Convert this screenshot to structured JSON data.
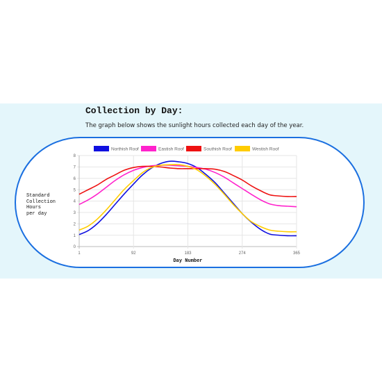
{
  "section": {
    "title": "Collection by Day:",
    "description": "The graph below shows the sunlight hours collected each day of the year."
  },
  "y_axis_label_lines": [
    "Standard",
    "Collection",
    "Hours",
    "per day"
  ],
  "chart_data": {
    "type": "line",
    "xlabel": "Day Number",
    "ylabel": "Standard Collection Hours per day",
    "x_ticks": [
      1,
      92,
      183,
      274,
      365
    ],
    "xlim": [
      1,
      365
    ],
    "y_ticks": [
      0,
      1,
      2,
      3,
      4,
      5,
      6,
      7,
      8
    ],
    "ylim": [
      0,
      8
    ],
    "grid": true,
    "legend_position": "top",
    "x": [
      1,
      16,
      31,
      46,
      61,
      76,
      92,
      107,
      122,
      137,
      153,
      168,
      183,
      198,
      213,
      229,
      244,
      259,
      274,
      289,
      305,
      320,
      335,
      350,
      365
    ],
    "series": [
      {
        "name": "Northish Roof",
        "color": "#1010e0",
        "values": [
          1.05,
          1.4,
          2.0,
          2.8,
          3.7,
          4.6,
          5.5,
          6.3,
          6.9,
          7.3,
          7.5,
          7.45,
          7.3,
          6.95,
          6.35,
          5.6,
          4.7,
          3.8,
          2.9,
          2.15,
          1.5,
          1.1,
          1.0,
          0.95,
          0.95
        ]
      },
      {
        "name": "Eastish Roof",
        "color": "#ff22cc",
        "values": [
          3.7,
          4.1,
          4.6,
          5.2,
          5.8,
          6.3,
          6.7,
          6.95,
          7.1,
          7.15,
          7.15,
          7.1,
          7.05,
          6.95,
          6.8,
          6.5,
          6.1,
          5.6,
          5.1,
          4.6,
          4.1,
          3.75,
          3.6,
          3.55,
          3.5
        ]
      },
      {
        "name": "Southish Roof",
        "color": "#ee1111",
        "values": [
          4.6,
          5.0,
          5.4,
          5.9,
          6.3,
          6.7,
          6.95,
          7.05,
          7.05,
          7.0,
          6.9,
          6.85,
          6.85,
          6.85,
          6.85,
          6.8,
          6.6,
          6.25,
          5.85,
          5.35,
          4.9,
          4.55,
          4.45,
          4.4,
          4.4
        ]
      },
      {
        "name": "Westish Roof",
        "color": "#ffcc00",
        "values": [
          1.45,
          1.8,
          2.4,
          3.2,
          4.1,
          5.0,
          5.8,
          6.5,
          6.95,
          7.15,
          7.2,
          7.2,
          7.05,
          6.75,
          6.2,
          5.45,
          4.6,
          3.7,
          2.9,
          2.2,
          1.75,
          1.45,
          1.35,
          1.3,
          1.3
        ]
      }
    ]
  }
}
